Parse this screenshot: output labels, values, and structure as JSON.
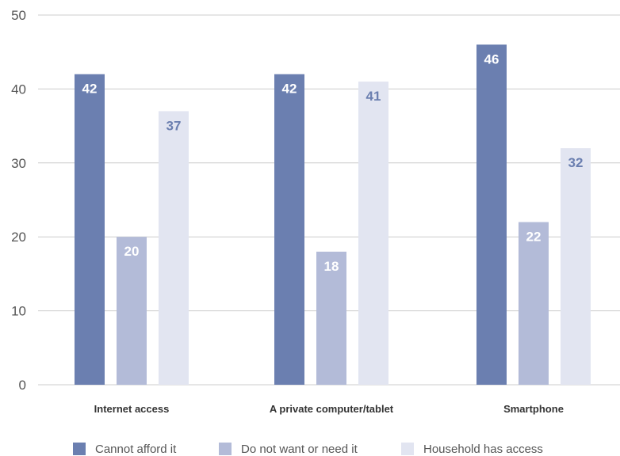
{
  "chart_data": {
    "type": "bar",
    "categories": [
      "Internet access",
      "A private computer/tablet",
      "Smartphone"
    ],
    "series": [
      {
        "name": "Cannot afford it",
        "values": [
          42,
          42,
          46
        ],
        "color": "#6b7fb0",
        "label_color": "#ffffff"
      },
      {
        "name": "Do not want or need it",
        "values": [
          20,
          18,
          22
        ],
        "color": "#b3bbd8",
        "label_color": "#ffffff"
      },
      {
        "name": "Household has access",
        "values": [
          37,
          41,
          32
        ],
        "color": "#e2e5f1",
        "label_color": "#6b7fb0"
      }
    ],
    "ylim": [
      0,
      50
    ],
    "yticks": [
      0,
      10,
      20,
      30,
      40,
      50
    ],
    "grid": true,
    "legend_position": "bottom"
  }
}
